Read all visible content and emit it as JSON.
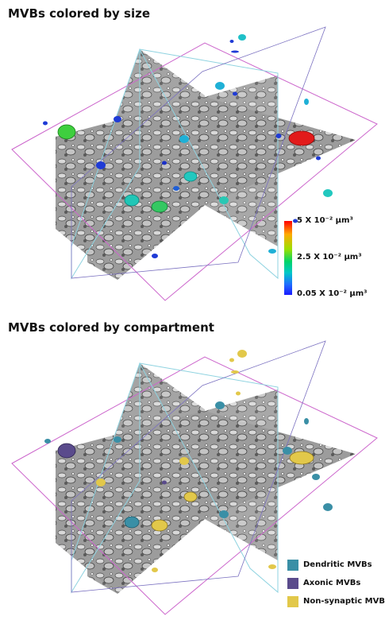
{
  "panels": {
    "size": {
      "title": "MVBs colored by size"
    },
    "compartment": {
      "title": "MVBs colored by compartment"
    }
  },
  "colorbar": {
    "max_label": "5 X 10⁻² µm³",
    "mid_label": "2.5 X 10⁻² µm³",
    "min_label": "0.05 X 10⁻² µm³",
    "max_color": "#ff0000",
    "mid_color": "#00d46a",
    "min_color": "#1a1aff"
  },
  "legend": {
    "items": [
      {
        "label": "Dendritic MVBs",
        "color": "#3a8fa6"
      },
      {
        "label": "Axonic MVBs",
        "color": "#5a4b8c"
      },
      {
        "label": "Non-synaptic MVBs",
        "color": "#e2c84a"
      }
    ]
  },
  "colors": {
    "plane_outline_magenta": "#cc66cc",
    "plane_outline_cyan": "#8fd3e0",
    "plane_outline_purple": "#7a70c0"
  }
}
